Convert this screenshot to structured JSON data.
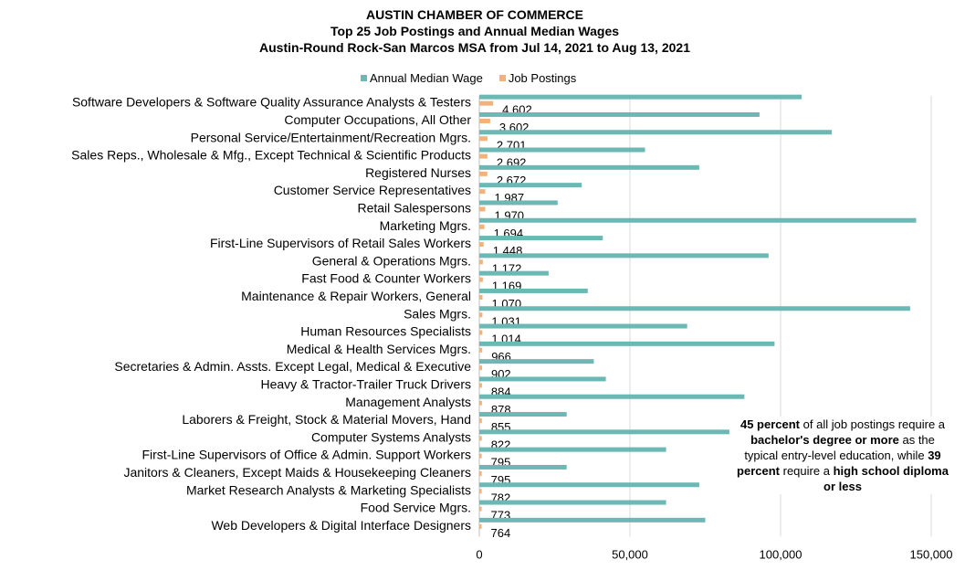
{
  "title_lines": [
    "AUSTIN CHAMBER OF COMMERCE",
    "Top 25 Job Postings and Annual Median Wages",
    "Austin-Round Rock-San Marcos MSA from Jul 14, 2021 to Aug 13, 2021"
  ],
  "legend": [
    {
      "label": "Annual Median Wage",
      "color": "#6cb8b4"
    },
    {
      "label": "Job Postings",
      "color": "#f2b27c"
    }
  ],
  "note": {
    "parts": [
      {
        "text": "45 percent",
        "bold": true
      },
      {
        "text": " of all job postings require a ",
        "bold": false
      },
      {
        "text": "bachelor's degree or more",
        "bold": true
      },
      {
        "text": " as the typical entry-level education, while ",
        "bold": false
      },
      {
        "text": "39 percent",
        "bold": true
      },
      {
        "text": " require a ",
        "bold": false
      },
      {
        "text": "high school diploma or less",
        "bold": true
      }
    ]
  },
  "chart_data": {
    "type": "bar",
    "orientation": "horizontal",
    "xlim": [
      0,
      150000
    ],
    "xticks": [
      0,
      50000,
      100000,
      150000
    ],
    "xtick_labels": [
      "0",
      "50,000",
      "100,000",
      "150,000"
    ],
    "grid": "vertical",
    "legend_position": "top",
    "categories": [
      "Software Developers & Software Quality Assurance Analysts & Testers",
      "Computer Occupations, All Other",
      "Personal Service/Entertainment/Recreation Mgrs.",
      "Sales Reps., Wholesale & Mfg., Except Technical & Scientific Products",
      "Registered Nurses",
      "Customer Service Representatives",
      "Retail Salespersons",
      "Marketing Mgrs.",
      "First-Line Supervisors of Retail Sales Workers",
      "General & Operations Mgrs.",
      "Fast Food & Counter Workers",
      "Maintenance & Repair Workers, General",
      "Sales Mgrs.",
      "Human Resources Specialists",
      "Medical & Health Services Mgrs.",
      "Secretaries & Admin. Assts. Except Legal, Medical & Executive",
      "Heavy & Tractor-Trailer Truck Drivers",
      "Management Analysts",
      "Laborers & Freight, Stock & Material Movers, Hand",
      "Computer Systems Analysts",
      "First-Line Supervisors of Office & Admin. Support Workers",
      "Janitors & Cleaners, Except Maids & Housekeeping Cleaners",
      "Market Research Analysts & Marketing Specialists",
      "Food Service Mgrs.",
      "Web Developers & Digital Interface Designers"
    ],
    "series": [
      {
        "name": "Annual Median Wage",
        "color": "#6cb8b4",
        "values": [
          107000,
          93000,
          117000,
          55000,
          73000,
          34000,
          26000,
          145000,
          41000,
          96000,
          23000,
          36000,
          143000,
          69000,
          98000,
          38000,
          42000,
          88000,
          29000,
          83000,
          62000,
          29000,
          73000,
          62000,
          75000
        ]
      },
      {
        "name": "Job Postings",
        "color": "#f2b27c",
        "values": [
          4602,
          3602,
          2701,
          2692,
          2672,
          1987,
          1970,
          1694,
          1448,
          1172,
          1169,
          1070,
          1031,
          1014,
          966,
          902,
          884,
          878,
          855,
          822,
          795,
          795,
          782,
          773,
          764
        ],
        "labels": [
          "4,602",
          "3,602",
          "2,701",
          "2,692",
          "2,672",
          "1,987",
          "1,970",
          "1,694",
          "1,448",
          "1,172",
          "1,169",
          "1,070",
          "1,031",
          "1,014",
          "966",
          "902",
          "884",
          "878",
          "855",
          "822",
          "795",
          "795",
          "782",
          "773",
          "764"
        ]
      }
    ]
  }
}
